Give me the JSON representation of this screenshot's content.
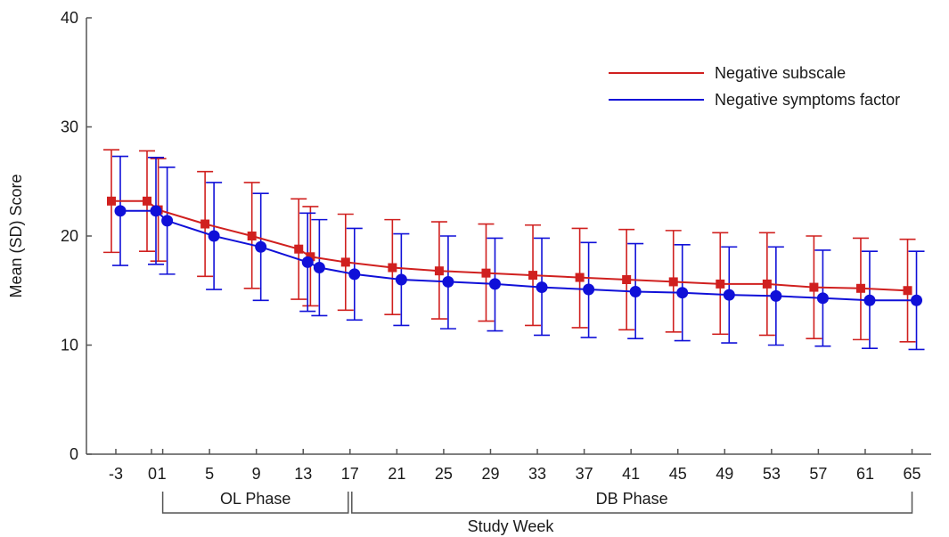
{
  "chart_data": {
    "type": "line",
    "title": "",
    "xlabel": "Study Week",
    "ylabel": "Mean (SD) Score",
    "ylim": [
      0,
      40
    ],
    "yticks": [
      "0",
      "10",
      "20",
      "30",
      "40"
    ],
    "xticks": [
      "-3",
      "0",
      "1",
      "5",
      "9",
      "13",
      "17",
      "21",
      "25",
      "29",
      "33",
      "37",
      "41",
      "45",
      "49",
      "53",
      "57",
      "61",
      "65"
    ],
    "grid": false,
    "legend_position": "top-right",
    "phases": [
      {
        "label": "OL Phase",
        "start_week": 1,
        "end_week": 17
      },
      {
        "label": "DB Phase",
        "start_week": 17,
        "end_week": 65
      }
    ],
    "series": [
      {
        "name": "Negative subscale",
        "color": "#d0201f",
        "marker": "square",
        "x": [
          -3,
          0,
          1,
          5,
          9,
          13,
          14,
          17,
          21,
          25,
          29,
          33,
          37,
          41,
          45,
          49,
          53,
          57,
          61,
          65
        ],
        "y": [
          23.2,
          23.2,
          22.4,
          21.1,
          20.0,
          18.8,
          18.1,
          17.6,
          17.1,
          16.8,
          16.6,
          16.4,
          16.2,
          16.0,
          15.8,
          15.6,
          15.6,
          15.3,
          15.2,
          15.0
        ],
        "err_upper": [
          27.9,
          27.8,
          27.1,
          25.9,
          24.9,
          23.4,
          22.7,
          22.0,
          21.5,
          21.3,
          21.1,
          21.0,
          20.7,
          20.6,
          20.5,
          20.3,
          20.3,
          20.0,
          19.8,
          19.7
        ],
        "err_lower": [
          18.5,
          18.6,
          17.7,
          16.3,
          15.2,
          14.2,
          13.6,
          13.2,
          12.8,
          12.4,
          12.2,
          11.8,
          11.6,
          11.4,
          11.2,
          11.0,
          10.9,
          10.6,
          10.5,
          10.3
        ]
      },
      {
        "name": "Negative symptoms factor",
        "color": "#1010d8",
        "marker": "circle",
        "x": [
          -3,
          0,
          1,
          5,
          9,
          13,
          14,
          17,
          21,
          25,
          29,
          33,
          37,
          41,
          45,
          49,
          53,
          57,
          61,
          65
        ],
        "y": [
          22.3,
          22.3,
          21.4,
          20.0,
          19.0,
          17.6,
          17.1,
          16.5,
          16.0,
          15.8,
          15.6,
          15.3,
          15.1,
          14.9,
          14.8,
          14.6,
          14.5,
          14.3,
          14.1,
          14.1
        ],
        "err_upper": [
          27.3,
          27.2,
          26.3,
          24.9,
          23.9,
          22.1,
          21.5,
          20.7,
          20.2,
          20.0,
          19.8,
          19.8,
          19.4,
          19.3,
          19.2,
          19.0,
          19.0,
          18.7,
          18.6,
          18.6
        ],
        "err_lower": [
          17.3,
          17.4,
          16.5,
          15.1,
          14.1,
          13.1,
          12.7,
          12.3,
          11.8,
          11.5,
          11.3,
          10.9,
          10.7,
          10.6,
          10.4,
          10.2,
          10.0,
          9.9,
          9.7,
          9.6
        ]
      }
    ]
  }
}
